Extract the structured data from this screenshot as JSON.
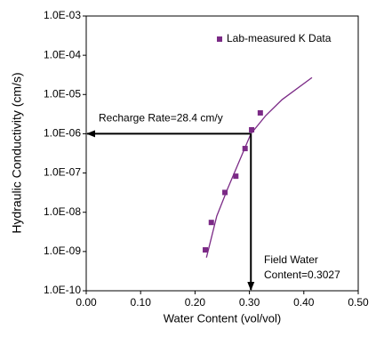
{
  "chart_data": {
    "type": "scatter",
    "xlabel": "Water Content (vol/vol)",
    "ylabel": "Hydraulic Conductivity (cm/s)",
    "xlim": [
      0,
      0.5
    ],
    "ylim": [
      1e-10,
      0.001
    ],
    "yscale": "log",
    "grid": false,
    "legend": "upper right",
    "xticks": [
      {
        "value": 0,
        "label": "0.00"
      },
      {
        "value": 0.1,
        "label": "0.10"
      },
      {
        "value": 0.2,
        "label": "0.20"
      },
      {
        "value": 0.3,
        "label": "0.30"
      },
      {
        "value": 0.4,
        "label": "0.40"
      },
      {
        "value": 0.5,
        "label": "0.50"
      }
    ],
    "yticks": [
      {
        "value": 1e-10,
        "label": "1.0E-10"
      },
      {
        "value": 1e-09,
        "label": "1.0E-09"
      },
      {
        "value": 1e-08,
        "label": "1.0E-08"
      },
      {
        "value": 1e-07,
        "label": "1.0E-07"
      },
      {
        "value": 1e-06,
        "label": "1.0E-06"
      },
      {
        "value": 1e-05,
        "label": "1.0E-05"
      },
      {
        "value": 0.0001,
        "label": "1.0E-04"
      },
      {
        "value": 0.001,
        "label": "1.0E-03"
      }
    ],
    "series": [
      {
        "name": "Lab-measured K Data",
        "color": "#7b2a86",
        "x": [
          0.219,
          0.23,
          0.255,
          0.275,
          0.292,
          0.304,
          0.32
        ],
        "values": [
          1.1e-09,
          5.5e-09,
          3.2e-08,
          8.3e-08,
          4.2e-07,
          1.26e-06,
          3.4e-06
        ]
      }
    ],
    "fit": {
      "color": "#7b2a86",
      "x": [
        0.221,
        0.24,
        0.26,
        0.28,
        0.3027,
        0.33,
        0.36,
        0.415
      ],
      "values": [
        7e-10,
        8e-09,
        4e-08,
        1.8e-07,
        1e-06,
        2.9e-06,
        7.4e-06,
        2.7e-05
      ]
    },
    "annotation_point": {
      "x": 0.3027,
      "y": 1e-06
    },
    "annotations": {
      "recharge": "Recharge Rate=28.4 cm/y",
      "field": [
        "Field Water",
        "Content=0.3027"
      ]
    }
  }
}
